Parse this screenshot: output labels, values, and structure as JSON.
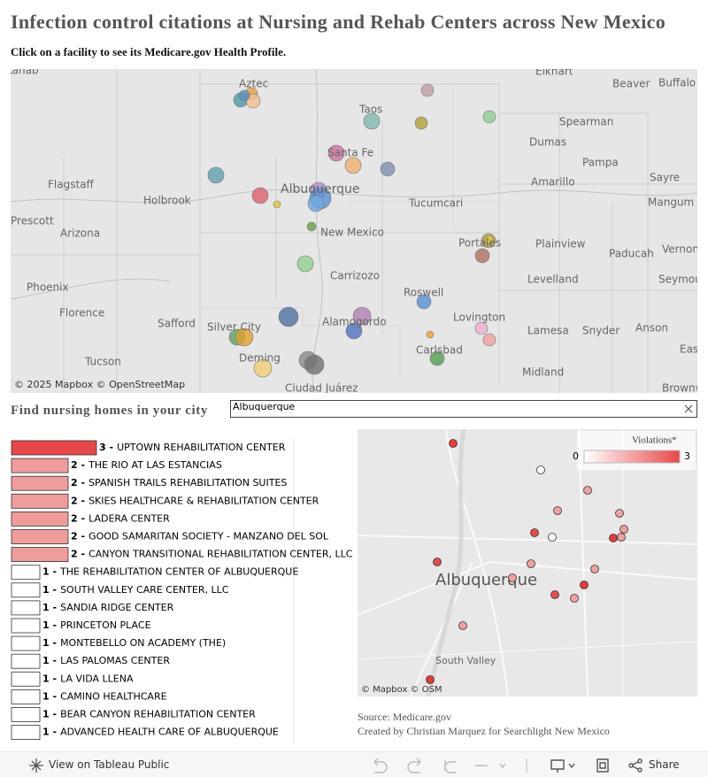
{
  "header": {
    "title": "Infection control citations at Nursing and Rehab Centers across New Mexico",
    "subtitle": "Click on a facility to see its Medicare.gov Health Profile."
  },
  "map": {
    "labels": [
      "Kanab",
      "Aztec",
      "Elkhart",
      "Beaver",
      "Buffalo",
      "Taos",
      "Spearman",
      "Dumas",
      "Santa Fe",
      "Pampa",
      "Flagstaff",
      "Holbrook",
      "Albuquerque",
      "Tucumcari",
      "Amarillo",
      "Sayre",
      "Mangum",
      "Prescott",
      "Arizona",
      "New Mexico",
      "Plainview",
      "Vernon",
      "Portales",
      "Paducah",
      "Phoenix",
      "Carrizozo",
      "Levelland",
      "Seymour",
      "Roswell",
      "Florence",
      "Safford",
      "Lovington",
      "Silver City",
      "Alamogordo",
      "Lamesa",
      "Snyder",
      "Anson",
      "Deming",
      "Carlsbad",
      "Tucson",
      "Midland",
      "Ciudad Juárez",
      "Brownwood",
      "Eastland"
    ],
    "attribution": "© 2025 Mapbox © OpenStreetMap"
  },
  "search": {
    "label": "Find nursing homes in your city",
    "value": "Albuquerque"
  },
  "chart_data": {
    "type": "bar",
    "orientation": "horizontal",
    "categories": [
      "UPTOWN REHABILITATION CENTER",
      "THE RIO AT LAS ESTANCIAS",
      "SPANISH TRAILS REHABILITATION SUITES",
      "SKIES HEALTHCARE & REHABILITATION CENTER",
      "LADERA CENTER",
      "GOOD SAMARITAN SOCIETY - MANZANO DEL SOL",
      "CANYON TRANSITIONAL REHABILITATION CENTER, LLC",
      "THE REHABILITATION CENTER OF ALBUQUERQUE",
      "SOUTH VALLEY CARE CENTER, LLC",
      "SANDIA RIDGE CENTER",
      "PRINCETON PLACE",
      "MONTEBELLO ON ACADEMY (THE)",
      "LAS PALOMAS CENTER",
      "LA VIDA LLENA",
      "CAMINO HEALTHCARE",
      "BEAR CANYON REHABILITATION CENTER",
      "ADVANCED HEALTH CARE OF ALBUQUERQUE"
    ],
    "values": [
      3,
      2,
      2,
      2,
      2,
      2,
      2,
      1,
      1,
      1,
      1,
      1,
      1,
      1,
      1,
      1,
      1
    ],
    "value_labels": [
      "3 -",
      "2 -",
      "2 -",
      "2 -",
      "2 -",
      "2 -",
      "2 -",
      "1 -",
      "1 -",
      "1 -",
      "1 -",
      "1 -",
      "1 -",
      "1 -",
      "1 -",
      "1 -",
      "1 -"
    ],
    "bar_colors": [
      "#e8474a",
      "#f09c9c",
      "#f09c9c",
      "#f09c9c",
      "#f09c9c",
      "#f09c9c",
      "#f09c9c",
      "#ffffff",
      "#ffffff",
      "#ffffff",
      "#ffffff",
      "#ffffff",
      "#ffffff",
      "#ffffff",
      "#ffffff",
      "#ffffff",
      "#ffffff"
    ],
    "xlim": [
      0,
      3
    ]
  },
  "city_map": {
    "labels": [
      "Albuquerque",
      "South Valley"
    ],
    "attribution": "© Mapbox  © OSM"
  },
  "legend": {
    "title": "Violations*",
    "ticks": [
      0,
      3
    ],
    "colors": [
      "#ffffff",
      "#e8474a"
    ]
  },
  "footer": {
    "source": "Source: Medicare.gov",
    "credit": "Created by Christian Marquez for Searchlight New Mexico"
  },
  "toolbar": {
    "view": "View on Tableau Public",
    "share": "Share"
  }
}
